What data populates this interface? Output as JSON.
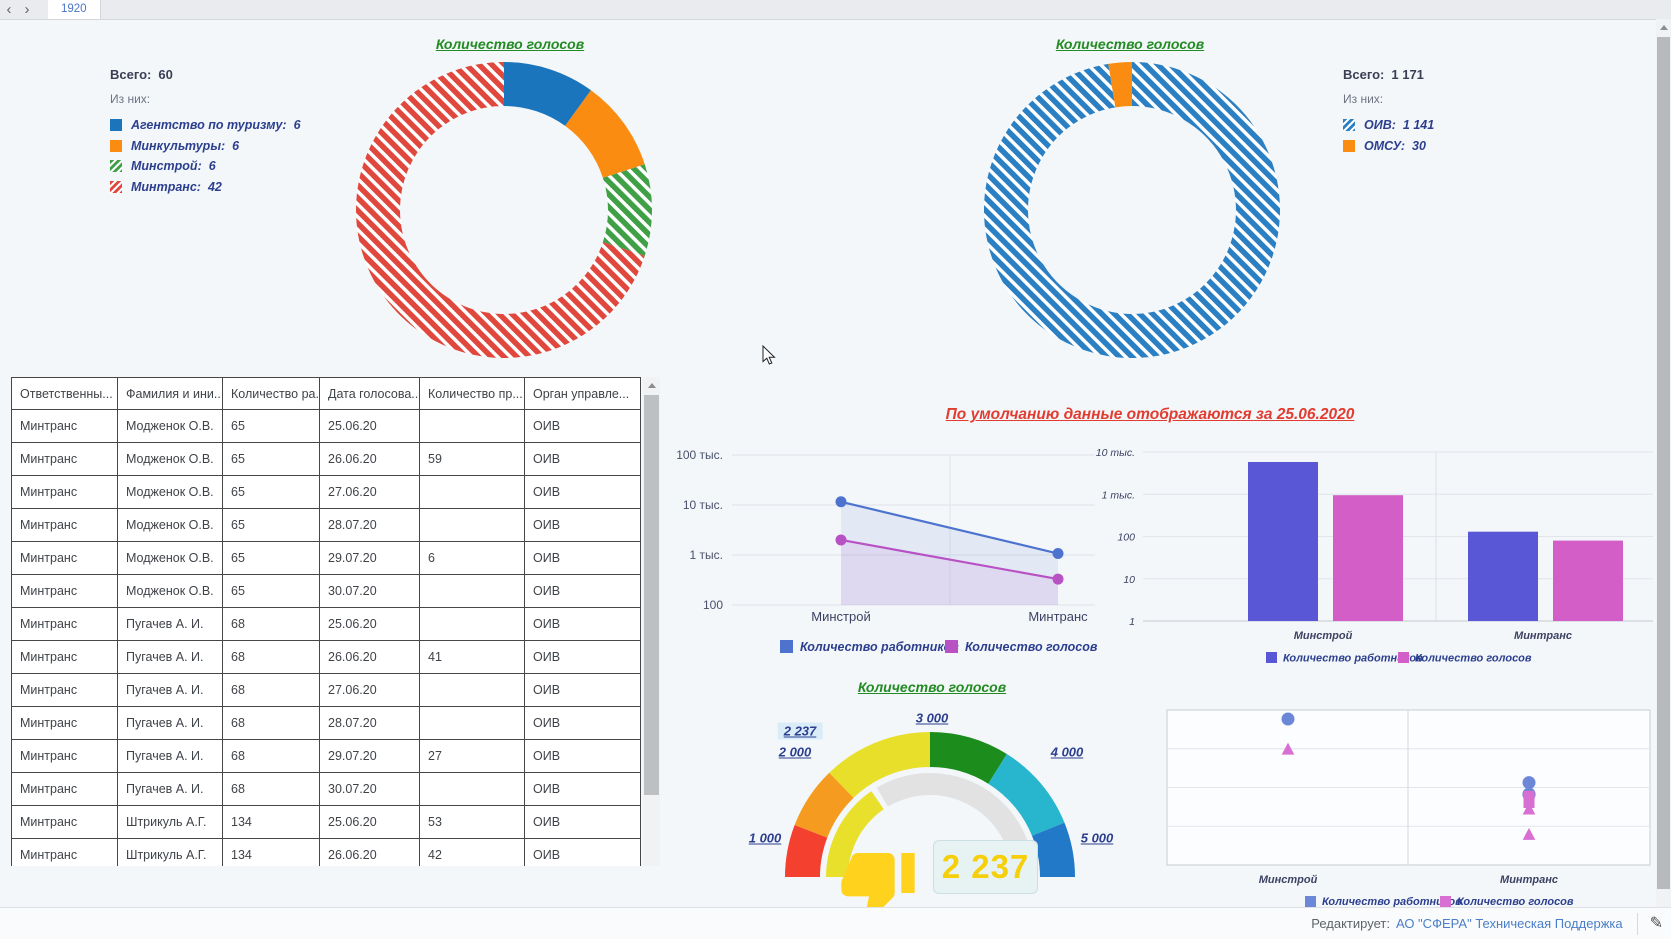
{
  "tab_bar": {
    "active_tab": "1920"
  },
  "donut_left": {
    "title": "Количество голосов",
    "total_label": "Всего:",
    "total_value": "60",
    "breakdown_label": "Из них:",
    "items": [
      {
        "label": "Агентство по туризму:",
        "value": "6",
        "color": "#1b75bc",
        "hatch": false
      },
      {
        "label": "Минкультуры:",
        "value": "6",
        "color": "#fb8c12",
        "hatch": false
      },
      {
        "label": "Минстрой:",
        "value": "6",
        "color": "#3fa045",
        "hatch": true
      },
      {
        "label": "Минтранс:",
        "value": "42",
        "color": "#e0473d",
        "hatch": true
      }
    ]
  },
  "donut_right": {
    "title": "Количество голосов",
    "total_label": "Всего:",
    "total_value": "1 171",
    "breakdown_label": "Из них:",
    "items": [
      {
        "label": "ОИВ:",
        "value": "1 141",
        "color": "#2b7fc3",
        "hatch": true
      },
      {
        "label": "ОМСУ:",
        "value": "30",
        "color": "#fb8c12",
        "hatch": false
      }
    ]
  },
  "table": {
    "columns": [
      "Ответственны...",
      "Фамилия и ини...",
      "Количество ра...",
      "Дата голосова...",
      "Количество пр...",
      "Орган управле..."
    ],
    "rows": [
      [
        "Минтранс",
        "Модженок О.В.",
        "65",
        "25.06.20",
        "",
        "ОИВ"
      ],
      [
        "Минтранс",
        "Модженок О.В.",
        "65",
        "26.06.20",
        "59",
        "ОИВ"
      ],
      [
        "Минтранс",
        "Модженок О.В.",
        "65",
        "27.06.20",
        "",
        "ОИВ"
      ],
      [
        "Минтранс",
        "Модженок О.В.",
        "65",
        "28.07.20",
        "",
        "ОИВ"
      ],
      [
        "Минтранс",
        "Модженок О.В.",
        "65",
        "29.07.20",
        "6",
        "ОИВ"
      ],
      [
        "Минтранс",
        "Модженок О.В.",
        "65",
        "30.07.20",
        "",
        "ОИВ"
      ],
      [
        "Минтранс",
        "Пугачев А. И.",
        "68",
        "25.06.20",
        "",
        "ОИВ"
      ],
      [
        "Минтранс",
        "Пугачев А. И.",
        "68",
        "26.06.20",
        "41",
        "ОИВ"
      ],
      [
        "Минтранс",
        "Пугачев А. И.",
        "68",
        "27.06.20",
        "",
        "ОИВ"
      ],
      [
        "Минтранс",
        "Пугачев А. И.",
        "68",
        "28.07.20",
        "",
        "ОИВ"
      ],
      [
        "Минтранс",
        "Пугачев А. И.",
        "68",
        "29.07.20",
        "27",
        "ОИВ"
      ],
      [
        "Минтранс",
        "Пугачев А. И.",
        "68",
        "30.07.20",
        "",
        "ОИВ"
      ],
      [
        "Минтранс",
        "Штрикуль А.Г.",
        "134",
        "25.06.20",
        "53",
        "ОИВ"
      ],
      [
        "Минтранс",
        "Штрикуль А.Г.",
        "134",
        "26.06.20",
        "42",
        "ОИВ"
      ]
    ]
  },
  "notice": "По умолчанию данные отображаются за 25.06.2020",
  "line_chart": {
    "type": "line",
    "log_scale": true,
    "y_ticks": [
      "100 тыс.",
      "10 тыс.",
      "1 тыс.",
      "100"
    ],
    "categories": [
      "Минстрой",
      "Минтранс"
    ],
    "series": [
      {
        "name": "Количество работников",
        "color": "#4e73cf",
        "values": [
          11600,
          1070
        ]
      },
      {
        "name": "Количество голосов",
        "color": "#b852c4",
        "values": [
          2000,
          330
        ]
      }
    ]
  },
  "bar_chart": {
    "type": "bar",
    "log_scale": true,
    "y_ticks": [
      "10 тыс.",
      "1 тыс.",
      "100",
      "10",
      "1"
    ],
    "categories": [
      "Минстрой",
      "Минтранс"
    ],
    "series": [
      {
        "name": "Количество работников",
        "color": "#5a57d6",
        "values": [
          5800,
          130
        ]
      },
      {
        "name": "Количество голосов",
        "color": "#d35ec8",
        "values": [
          950,
          80
        ]
      }
    ]
  },
  "gauge": {
    "title": "Количество голосов",
    "value": 2237,
    "value_label": "2 237",
    "current_label": "2 237",
    "min": 1000,
    "max": 5000,
    "tick_labels": [
      "1 000",
      "2 000",
      "3 000",
      "4 000",
      "5 000"
    ],
    "segment_colors": [
      "#f4402e",
      "#f59b20",
      "#e8df2b",
      "#1c8c1c",
      "#27b6cd",
      "#2279c8"
    ],
    "progress_color": "#e9e02c",
    "track_color": "#e2e2e2"
  },
  "scatter": {
    "type": "scatter",
    "log_scale": true,
    "categories": [
      "Минстрой",
      "Минтранс"
    ],
    "series": [
      {
        "name": "Количество работников",
        "color": "#6d87d8",
        "marker": "circle",
        "points": [
          {
            "category": 0,
            "value": 5860
          },
          {
            "category": 1,
            "value": 134
          },
          {
            "category": 1,
            "value": 68
          },
          {
            "category": 1,
            "value": 65
          }
        ]
      },
      {
        "name": "Количество голосов",
        "color": "#d86fd2",
        "marker": "mixed",
        "points": [
          {
            "category": 0,
            "value": 950,
            "marker": "triangle"
          },
          {
            "category": 1,
            "value": 59,
            "marker": "square"
          },
          {
            "category": 1,
            "value": 53,
            "marker": "square"
          },
          {
            "category": 1,
            "value": 41,
            "marker": "square"
          },
          {
            "category": 1,
            "value": 27,
            "marker": "triangle"
          },
          {
            "category": 1,
            "value": 6,
            "marker": "triangle"
          }
        ]
      }
    ]
  },
  "footer": {
    "label": "Редактирует:",
    "link": "АО \"СФЕРА\" Техническая Поддержка"
  }
}
